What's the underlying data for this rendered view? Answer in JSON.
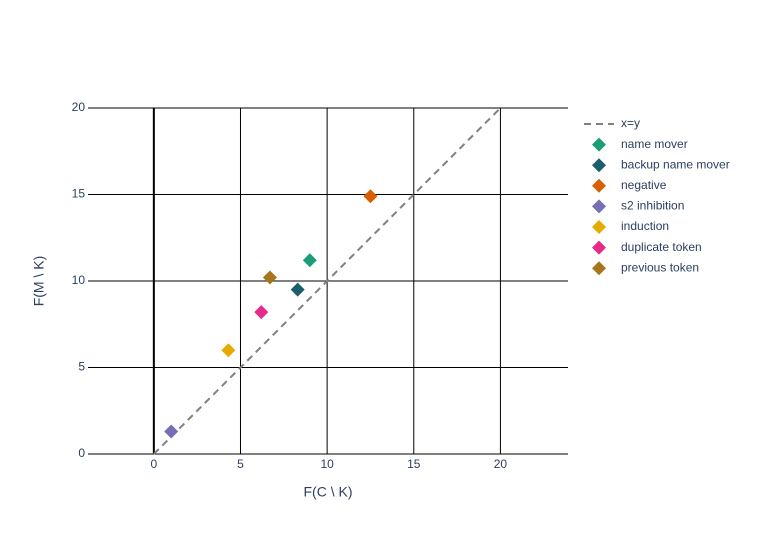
{
  "chart_data": {
    "type": "scatter",
    "x_label": "F(C \\ K)",
    "y_label": "F(M \\ K)",
    "xlim": [
      -3.8,
      23.9
    ],
    "ylim": [
      0,
      20
    ],
    "xticks": [
      0,
      5,
      10,
      15,
      20
    ],
    "yticks": [
      0,
      5,
      10,
      15,
      20
    ],
    "grid": true,
    "legend": "right",
    "series": [
      {
        "name": "x=y",
        "color": "#808080",
        "mode": "lines",
        "dash": "dash",
        "x": [
          0,
          20
        ],
        "values": [
          0,
          20
        ]
      },
      {
        "name": "name mover",
        "color": "#1b9e77",
        "mode": "markers",
        "marker": "diamond",
        "x": [
          9.0
        ],
        "values": [
          11.2
        ]
      },
      {
        "name": "backup name mover",
        "color": "#1d5e6e",
        "mode": "markers",
        "marker": "diamond",
        "x": [
          8.3
        ],
        "values": [
          9.5
        ]
      },
      {
        "name": "negative",
        "color": "#d95f02",
        "mode": "markers",
        "marker": "diamond",
        "x": [
          12.5
        ],
        "values": [
          14.9
        ]
      },
      {
        "name": "s2 inhibition",
        "color": "#7570b3",
        "mode": "markers",
        "marker": "diamond",
        "x": [
          1.0
        ],
        "values": [
          1.3
        ]
      },
      {
        "name": "induction",
        "color": "#e6ab02",
        "mode": "markers",
        "marker": "diamond",
        "x": [
          4.3
        ],
        "values": [
          6.0
        ]
      },
      {
        "name": "duplicate token",
        "color": "#e7298a",
        "mode": "markers",
        "marker": "diamond",
        "x": [
          6.2
        ],
        "values": [
          8.2
        ]
      },
      {
        "name": "previous token",
        "color": "#a6761d",
        "mode": "markers",
        "marker": "diamond",
        "x": [
          6.7
        ],
        "values": [
          10.2
        ]
      }
    ]
  }
}
